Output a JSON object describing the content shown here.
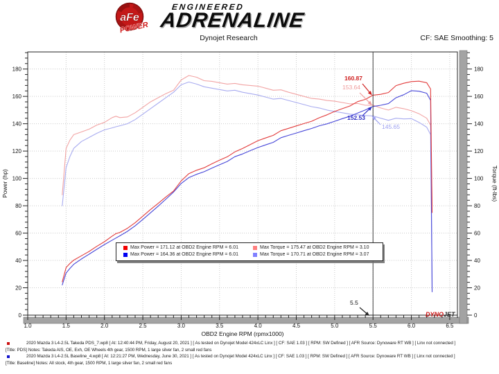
{
  "header": {
    "badge_text": "aFe",
    "badge_sub": "POWER",
    "brand_top": "ENGINEERED",
    "brand_main": "ADRENALINE"
  },
  "titlebar": {
    "center": "Dynojet Research",
    "right": "CF: SAE Smoothing: 5"
  },
  "chart_data": {
    "type": "line",
    "title": "Dynojet Research",
    "xlabel": "OBD2 Engine RPM (rpmx1000)",
    "ylabel_left": "Power (hp)",
    "ylabel_right": "Torque (ft-lbs)",
    "xlim": [
      1.0,
      6.6
    ],
    "ylim": [
      0,
      192.5
    ],
    "xticks": [
      1.0,
      1.5,
      2.0,
      2.5,
      3.0,
      3.5,
      4.0,
      4.5,
      5.0,
      5.5,
      6.0,
      6.5
    ],
    "yticks": [
      0,
      20,
      40,
      60,
      80,
      100,
      120,
      140,
      160,
      180
    ],
    "grid": "dotted",
    "cursor": {
      "rpm": 5.5,
      "label": "5.5"
    },
    "cursor_values": [
      {
        "label": "160.87",
        "value": 160.87,
        "series": "takeda_power",
        "color": "#cf2020",
        "bold": true
      },
      {
        "label": "153.64",
        "value": 153.64,
        "series": "takeda_torque",
        "color": "#ef9a9a",
        "bold": false
      },
      {
        "label": "152.53",
        "value": 152.53,
        "series": "baseline_power",
        "color": "#2c2cc4",
        "bold": true
      },
      {
        "label": "145.65",
        "value": 145.65,
        "series": "baseline_torque",
        "color": "#9b9ff0",
        "bold": false
      }
    ],
    "rpm": [
      1.45,
      1.5,
      1.55,
      1.6,
      1.7,
      1.8,
      1.9,
      2.0,
      2.1,
      2.15,
      2.2,
      2.3,
      2.4,
      2.5,
      2.6,
      2.7,
      2.8,
      2.9,
      3.0,
      3.1,
      3.2,
      3.3,
      3.4,
      3.5,
      3.6,
      3.7,
      3.8,
      3.9,
      4.0,
      4.1,
      4.2,
      4.3,
      4.4,
      4.5,
      4.6,
      4.7,
      4.8,
      4.9,
      5.0,
      5.1,
      5.2,
      5.3,
      5.4,
      5.5,
      5.6,
      5.7,
      5.8,
      5.9,
      6.0,
      6.1,
      6.2,
      6.25,
      6.27
    ],
    "series": [
      {
        "key": "baseline_torque",
        "name": "Baseline Max Torque",
        "unit": "ft-lbs",
        "color": "#a8abf0",
        "values": [
          80,
          108,
          116,
          122,
          127,
          130,
          133,
          135.5,
          137,
          137.8,
          138.5,
          140,
          143,
          147,
          151,
          155,
          159,
          163,
          168.5,
          170.5,
          169,
          167,
          166,
          165,
          164,
          164.5,
          163,
          162,
          161,
          159.5,
          158,
          158.5,
          157,
          155.5,
          154,
          152.5,
          151.5,
          150,
          149,
          148,
          147,
          146.5,
          146,
          145.7,
          144,
          142.5,
          144,
          143.5,
          143.7,
          141,
          137.5,
          132,
          20
        ]
      },
      {
        "key": "takeda_torque",
        "name": "Takeda Max Torque",
        "unit": "ft-lbs",
        "color": "#f2a3a3",
        "values": [
          88,
          122,
          128,
          132,
          134,
          136,
          139,
          141,
          144.5,
          145.5,
          144.5,
          145,
          148,
          152,
          156,
          159,
          162,
          164.5,
          172,
          175.3,
          174,
          171.5,
          171,
          170,
          169,
          169.5,
          168.5,
          168,
          167.5,
          166,
          164.5,
          164.8,
          163,
          161.5,
          160,
          158.5,
          158,
          157,
          156.5,
          155.5,
          154.5,
          154.8,
          153.5,
          153.6,
          151.5,
          150,
          152,
          151,
          149.5,
          147.3,
          144,
          139,
          80
        ]
      },
      {
        "key": "baseline_power",
        "name": "Baseline Max Power",
        "unit": "hp",
        "color": "#4646d8",
        "values": [
          22.1,
          30.8,
          34.2,
          37.2,
          41.1,
          44.6,
          48.1,
          51.6,
          54.8,
          56.4,
          58,
          61.3,
          65.3,
          70,
          74.8,
          79.7,
          84.8,
          90,
          96.3,
          100.6,
          103,
          104.9,
          107.5,
          110,
          112.4,
          115.9,
          117.9,
          120.3,
          122.6,
          124.5,
          126.4,
          129.8,
          131.5,
          133.2,
          134.9,
          136.5,
          138.5,
          139.9,
          141.8,
          143.7,
          145.5,
          147.8,
          150.1,
          152.6,
          153.5,
          154.7,
          159,
          161.2,
          164.2,
          163.8,
          162.3,
          157.1,
          17
        ]
      },
      {
        "key": "takeda_power",
        "name": "Takeda Max Power",
        "unit": "hp",
        "color": "#e23b3b",
        "values": [
          24.3,
          34.8,
          37.8,
          40.2,
          43.4,
          46.6,
          50.3,
          53.7,
          57.8,
          59.6,
          60.5,
          63.5,
          67.6,
          72.4,
          77.2,
          81.7,
          86.4,
          90.8,
          98.2,
          103.5,
          106,
          107.8,
          110.7,
          113.3,
          115.8,
          119.4,
          121.9,
          124.7,
          127.6,
          129.6,
          131.5,
          134.9,
          136.6,
          138.4,
          140.1,
          141.8,
          144.4,
          146.5,
          149,
          151,
          153,
          156.2,
          157.8,
          160.9,
          161.5,
          162.8,
          167.9,
          169.6,
          170.8,
          171.1,
          170,
          165.4,
          75
        ]
      }
    ],
    "watermark": {
      "part1": "DYNO",
      "part2": "JET"
    }
  },
  "legend": {
    "entries": [
      {
        "color": "#f20000",
        "text": "Max Power = 171.12 at OBD2 Engine RPM = 6.01"
      },
      {
        "color": "#ff8080",
        "text": "Max Torque = 175.47 at OBD2 Engine RPM = 3.10"
      },
      {
        "color": "#0000f2",
        "text": "Max Power = 164.36 at OBD2 Engine RPM = 6.01"
      },
      {
        "color": "#8080ff",
        "text": "Max Torque = 170.71 at OBD2 Engine RPM = 3.07"
      }
    ]
  },
  "runs": [
    {
      "bullet_color": "#cc1111",
      "line1": "2020 Mazda 3 L4-2.5L Takeda PDS_7.wp8 [ At: 12:40:44 PM, Friday, August 20, 2021 ] [ As tested on Dynojet Model 424xLC Linx ] [ CF: SAE 1.03 ] [ RPM: SW Defined ] [ AFR Source: Dynoware RT WB ] [ Linx not connected ]",
      "line2": "[Title: PDS]  Notes: Takeda AIS, OE, Exh, OE Wheels 4th gear, 1500 RPM, 1 large silver fan, 2 small red fans"
    },
    {
      "bullet_color": "#1111cc",
      "line1": "2020 Mazda 3 L4-2.5L Baseline_4.wp8 [ At: 12:21:27 PM, Wednesday, June 30, 2021 ] [ As tested on Dynojet Model 424xLC Linx ] [ CF: SAE 1.03 ] [ RPM: SW Defined ] [ AFR Source: Dynoware RT WB ] [ Linx not connected ]",
      "line2": "[Title: Baseline]  Notes: All stock, 4th gear, 1500 RPM, 1 large silver fan, 2 small red fans"
    }
  ]
}
